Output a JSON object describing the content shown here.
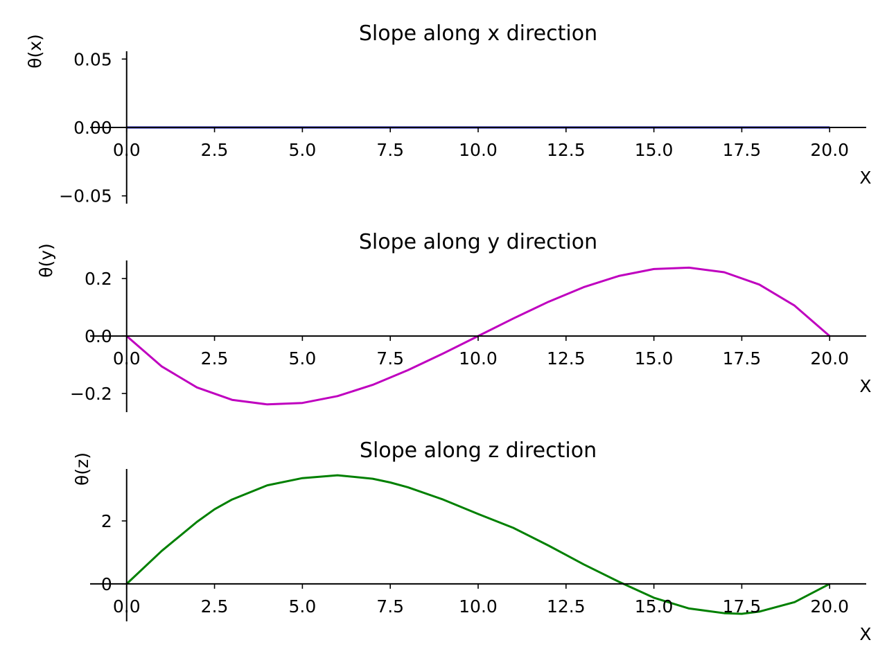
{
  "chart_data": [
    {
      "type": "line",
      "title": "Slope along x direction",
      "xlabel": "X",
      "ylabel": "θ(x)",
      "xlim": [
        -1.04,
        21.04
      ],
      "ylim": [
        -0.0557,
        0.0557
      ],
      "xticks": [
        "0.0",
        "2.5",
        "5.0",
        "7.5",
        "10.0",
        "12.5",
        "15.0",
        "17.5",
        "20.0"
      ],
      "yticks": [
        "−0.05",
        "0.00",
        "0.05"
      ],
      "ytick_values": [
        -0.05,
        0,
        0.05
      ],
      "grid": false,
      "color": "#0000bf",
      "x": [
        0,
        20
      ],
      "y": [
        0,
        0
      ]
    },
    {
      "type": "line",
      "title": "Slope along y direction",
      "xlabel": "X",
      "ylabel": "θ(y)",
      "xlim": [
        -1.04,
        21.04
      ],
      "ylim": [
        -0.265,
        0.263
      ],
      "xticks": [
        "0.0",
        "2.5",
        "5.0",
        "7.5",
        "10.0",
        "12.5",
        "15.0",
        "17.5",
        "20.0"
      ],
      "yticks": [
        "−0.2",
        "0.0",
        "0.2"
      ],
      "ytick_values": [
        -0.2,
        0,
        0.2
      ],
      "grid": false,
      "color": "#bf00bf",
      "x": [
        0,
        1,
        2,
        3,
        4,
        5,
        6,
        7,
        8,
        9,
        10,
        11,
        12,
        13,
        14,
        15,
        16,
        17,
        18,
        19,
        20
      ],
      "y": [
        0,
        -0.106,
        -0.179,
        -0.222,
        -0.238,
        -0.233,
        -0.209,
        -0.17,
        -0.119,
        -0.061,
        0,
        0.061,
        0.119,
        0.17,
        0.209,
        0.233,
        0.238,
        0.222,
        0.179,
        0.106,
        0
      ]
    },
    {
      "type": "line",
      "title": "Slope along z direction",
      "xlabel": "X",
      "ylabel": "θ(z)",
      "xlim": [
        -1.04,
        21.04
      ],
      "ylim": [
        -1.19,
        3.65
      ],
      "xticks": [
        "0.0",
        "2.5",
        "5.0",
        "7.5",
        "10.0",
        "12.5",
        "15.0",
        "17.5",
        "20.0"
      ],
      "yticks": [
        "0",
        "2"
      ],
      "ytick_values": [
        0,
        2
      ],
      "grid": false,
      "color": "#008000",
      "x": [
        0,
        1,
        2,
        2.5,
        3,
        4,
        5,
        6,
        7,
        7.5,
        8,
        9,
        10,
        11,
        12,
        12.5,
        13,
        14,
        15,
        16,
        17,
        17.5,
        18,
        19,
        20
      ],
      "y": [
        0,
        1.05,
        1.97,
        2.37,
        2.68,
        3.13,
        3.36,
        3.45,
        3.34,
        3.22,
        3.07,
        2.68,
        2.22,
        1.78,
        1.22,
        0.92,
        0.62,
        0.07,
        -0.44,
        -0.78,
        -0.93,
        -0.95,
        -0.88,
        -0.58,
        0
      ]
    }
  ]
}
